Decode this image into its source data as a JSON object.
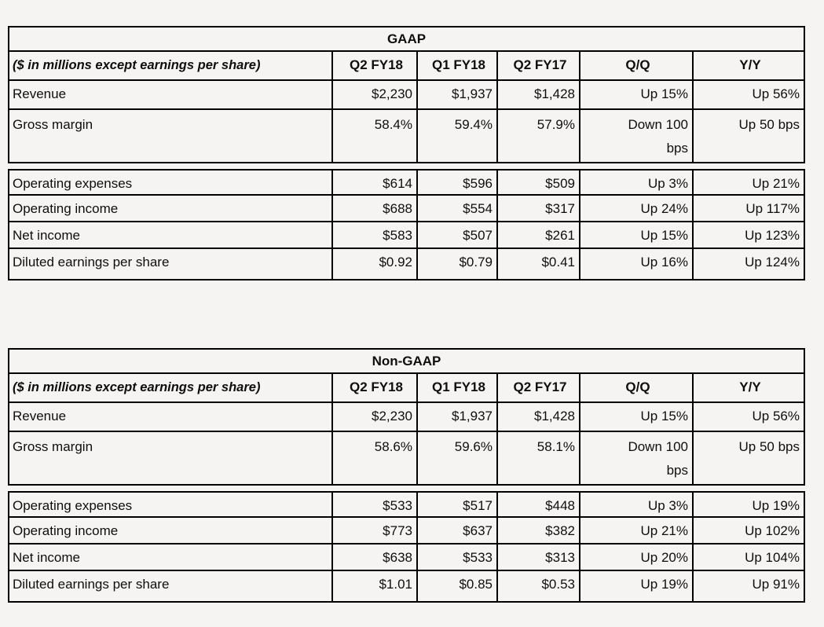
{
  "page": {
    "background": "#f5f4f2",
    "border_color": "#000000",
    "text_color": "#0e0e0e"
  },
  "tables": [
    {
      "title": "GAAP",
      "unit_label": "($ in millions except earnings per share)",
      "columns": [
        "Q2 FY18",
        "Q1 FY18",
        "Q2 FY17",
        "Q/Q",
        "Y/Y"
      ],
      "rows": [
        {
          "label": "Revenue",
          "values": [
            "$2,230",
            "$1,937",
            "$1,428",
            "Up 15%",
            "Up 56%"
          ]
        },
        {
          "label": "Gross margin",
          "tall": true,
          "values": [
            "58.4%",
            "59.4%",
            "57.9%",
            "Down 100\nbps",
            "Up 50 bps"
          ]
        },
        {
          "label": "Operating expenses",
          "section_start": true,
          "values": [
            "$614",
            "$596",
            "$509",
            "Up 3%",
            "Up 21%"
          ]
        },
        {
          "label": "Operating income",
          "values": [
            "$688",
            "$554",
            "$317",
            "Up 24%",
            "Up 117%"
          ]
        },
        {
          "label": "Net income",
          "values": [
            "$583",
            "$507",
            "$261",
            "Up 15%",
            "Up 123%"
          ]
        },
        {
          "label": "Diluted earnings per share",
          "values": [
            "$0.92",
            "$0.79",
            "$0.41",
            "Up 16%",
            "Up 124%"
          ]
        }
      ]
    },
    {
      "title": "Non-GAAP",
      "unit_label": "($ in millions except earnings per share)",
      "columns": [
        "Q2 FY18",
        "Q1 FY18",
        "Q2 FY17",
        "Q/Q",
        "Y/Y"
      ],
      "rows": [
        {
          "label": "Revenue",
          "values": [
            "$2,230",
            "$1,937",
            "$1,428",
            "Up 15%",
            "Up 56%"
          ]
        },
        {
          "label": "Gross margin",
          "tall": true,
          "values": [
            "58.6%",
            "59.6%",
            "58.1%",
            "Down 100\nbps",
            "Up 50 bps"
          ]
        },
        {
          "label": "Operating expenses",
          "section_start": true,
          "values": [
            "$533",
            "$517",
            "$448",
            "Up 3%",
            "Up 19%"
          ]
        },
        {
          "label": "Operating income",
          "values": [
            "$773",
            "$637",
            "$382",
            "Up 21%",
            "Up 102%"
          ]
        },
        {
          "label": "Net income",
          "values": [
            "$638",
            "$533",
            "$313",
            "Up 20%",
            "Up 104%"
          ]
        },
        {
          "label": "Diluted earnings per share",
          "values": [
            "$1.01",
            "$0.85",
            "$0.53",
            "Up 19%",
            "Up 91%"
          ]
        }
      ]
    }
  ]
}
